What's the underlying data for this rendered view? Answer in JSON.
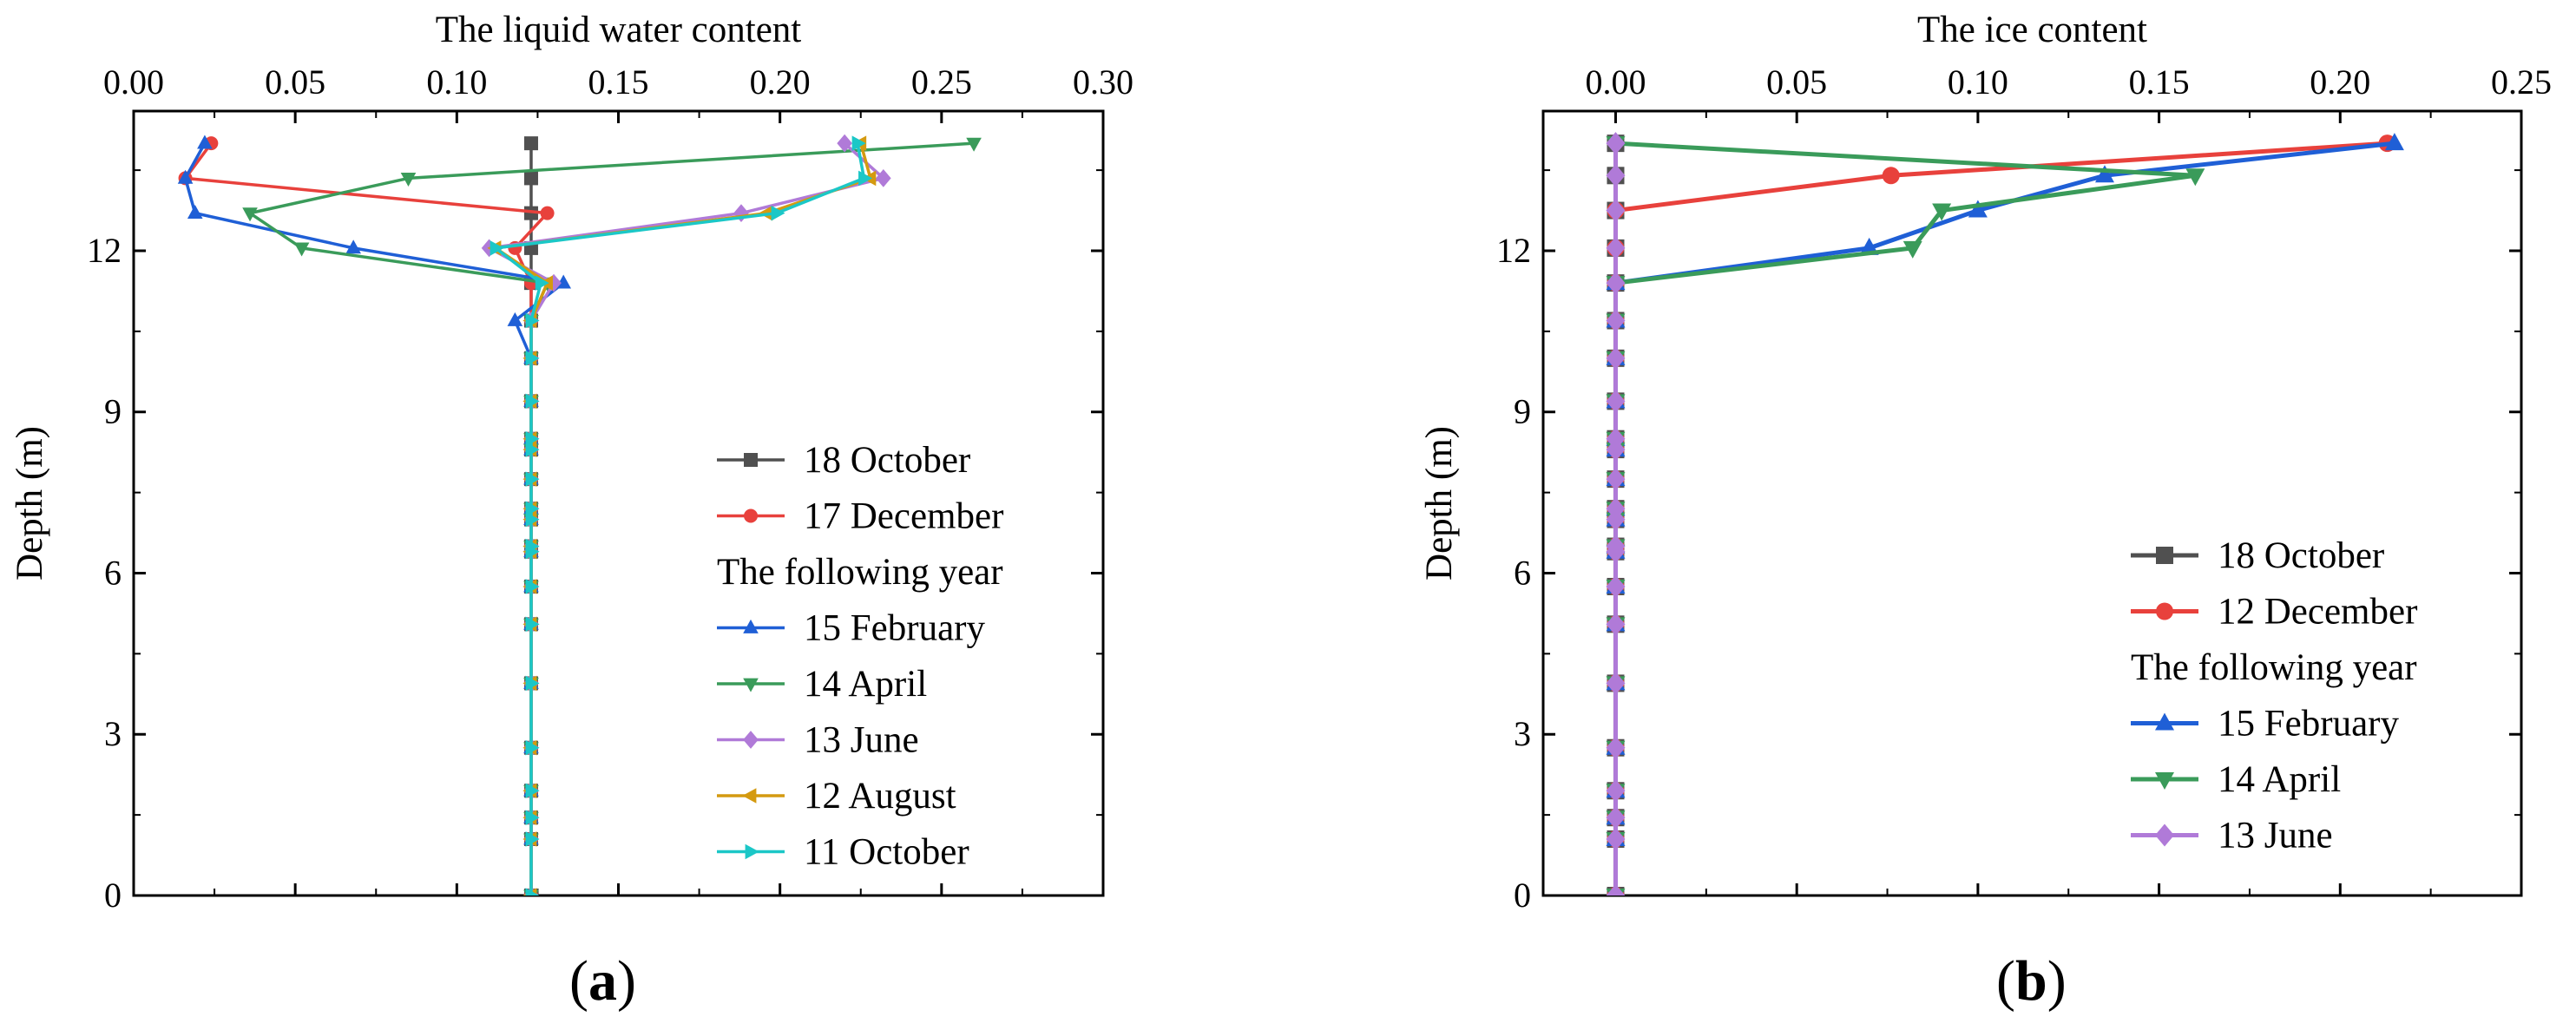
{
  "colors": {
    "18 October": "#505050",
    "17 December": "#e8413c",
    "12 December": "#e8413c",
    "15 February": "#1f5fd6",
    "14 April": "#3a9b5a",
    "13 June": "#b07ad8",
    "12 August": "#d49a10",
    "11 October": "#1bc7c7"
  },
  "chart_data": [
    {
      "type": "line",
      "panel_label": "a",
      "title": "",
      "xlabel": "The liquid water content",
      "ylabel": "Depth (m)",
      "xlim": [
        0.0,
        0.3
      ],
      "ylim": [
        0,
        14.6
      ],
      "xticks": [
        "0.00",
        "0.05",
        "0.10",
        "0.15",
        "0.20",
        "0.25",
        "0.30"
      ],
      "yticks": [
        "0",
        "3",
        "6",
        "9",
        "12"
      ],
      "legend_subheading": "The following year",
      "legend_position": "lower-right",
      "depths": [
        14.0,
        13.35,
        12.7,
        12.05,
        11.4,
        10.7,
        10.0,
        9.2,
        8.5,
        8.3,
        7.75,
        7.2,
        7.0,
        6.5,
        6.4,
        5.75,
        5.05,
        3.95,
        2.75,
        1.95,
        1.45,
        1.05,
        0.0
      ],
      "series": [
        {
          "name": "18 October",
          "marker": "square",
          "values": [
            0.123,
            0.123,
            0.123,
            0.123,
            0.123,
            0.123,
            0.123,
            0.123,
            0.123,
            0.123,
            0.123,
            0.123,
            0.123,
            0.123,
            0.123,
            0.123,
            0.123,
            0.123,
            0.123,
            0.123,
            0.123,
            0.123,
            0.123
          ]
        },
        {
          "name": "17 December",
          "marker": "circle",
          "values": [
            0.024,
            0.016,
            0.128,
            0.118,
            0.123,
            0.123,
            0.123,
            0.123,
            0.123,
            0.123,
            0.123,
            0.123,
            0.123,
            0.123,
            0.123,
            0.123,
            0.123,
            0.123,
            0.123,
            0.123,
            0.123,
            0.123,
            0.123
          ]
        },
        {
          "name": "15 February",
          "marker": "triangle-up",
          "values": [
            0.022,
            0.016,
            0.019,
            0.068,
            0.133,
            0.118,
            0.123,
            0.123,
            0.123,
            0.123,
            0.123,
            0.123,
            0.123,
            0.123,
            0.123,
            0.123,
            0.123,
            0.123,
            0.123,
            0.123,
            0.123,
            0.123,
            0.123
          ]
        },
        {
          "name": "14 April",
          "marker": "triangle-down",
          "values": [
            0.26,
            0.085,
            0.036,
            0.052,
            0.128,
            0.123,
            0.123,
            0.123,
            0.123,
            0.123,
            0.123,
            0.123,
            0.123,
            0.123,
            0.123,
            0.123,
            0.123,
            0.123,
            0.123,
            0.123,
            0.123,
            0.123,
            0.123
          ]
        },
        {
          "name": "13 June",
          "marker": "diamond",
          "values": [
            0.22,
            0.232,
            0.188,
            0.11,
            0.13,
            0.123,
            0.123,
            0.123,
            0.123,
            0.123,
            0.123,
            0.123,
            0.123,
            0.123,
            0.123,
            0.123,
            0.123,
            0.123,
            0.123,
            0.123,
            0.123,
            0.123,
            0.123
          ]
        },
        {
          "name": "12 August",
          "marker": "triangle-left",
          "values": [
            0.225,
            0.228,
            0.196,
            0.112,
            0.128,
            0.123,
            0.123,
            0.123,
            0.123,
            0.123,
            0.123,
            0.123,
            0.123,
            0.123,
            0.123,
            0.123,
            0.123,
            0.123,
            0.123,
            0.123,
            0.123,
            0.123,
            0.123
          ]
        },
        {
          "name": "11 October",
          "marker": "triangle-right",
          "values": [
            0.224,
            0.226,
            0.199,
            0.112,
            0.126,
            0.123,
            0.123,
            0.123,
            0.123,
            0.123,
            0.123,
            0.123,
            0.123,
            0.123,
            0.123,
            0.123,
            0.123,
            0.123,
            0.123,
            0.123,
            0.123,
            0.123,
            0.123
          ]
        }
      ]
    },
    {
      "type": "line",
      "panel_label": "b",
      "title": "",
      "xlabel": "The ice content",
      "ylabel": "Depth (m)",
      "xlim": [
        -0.02,
        0.25
      ],
      "ylim": [
        0,
        14.6
      ],
      "xticks": [
        "0.00",
        "0.05",
        "0.10",
        "0.15",
        "0.20",
        "0.25"
      ],
      "yticks": [
        "0",
        "3",
        "6",
        "9",
        "12"
      ],
      "legend_subheading": "The following year",
      "legend_position": "lower-right",
      "depths": [
        14.0,
        13.4,
        12.75,
        12.05,
        11.4,
        10.7,
        10.0,
        9.2,
        8.5,
        8.3,
        7.75,
        7.2,
        7.0,
        6.5,
        6.4,
        5.75,
        5.05,
        3.95,
        2.75,
        1.95,
        1.45,
        1.05,
        0.0
      ],
      "series": [
        {
          "name": "18 October",
          "marker": "square",
          "values": [
            0,
            0,
            0,
            0,
            0,
            0,
            0,
            0,
            0,
            0,
            0,
            0,
            0,
            0,
            0,
            0,
            0,
            0,
            0,
            0,
            0,
            0,
            0
          ]
        },
        {
          "name": "12 December",
          "marker": "circle",
          "values": [
            0.213,
            0.076,
            0.0,
            0.0,
            0.0,
            0,
            0,
            0,
            0,
            0,
            0,
            0,
            0,
            0,
            0,
            0,
            0,
            0,
            0,
            0,
            0,
            0,
            0
          ]
        },
        {
          "name": "15 February",
          "marker": "triangle-up",
          "values": [
            0.215,
            0.135,
            0.1,
            0.07,
            0.0,
            0,
            0,
            0,
            0,
            0,
            0,
            0,
            0,
            0,
            0,
            0,
            0,
            0,
            0,
            0,
            0,
            0,
            0
          ]
        },
        {
          "name": "14 April",
          "marker": "triangle-down",
          "values": [
            0.0,
            0.16,
            0.09,
            0.082,
            0.0,
            0,
            0,
            0,
            0,
            0,
            0,
            0,
            0,
            0,
            0,
            0,
            0,
            0,
            0,
            0,
            0,
            0,
            0
          ]
        },
        {
          "name": "13 June",
          "marker": "diamond",
          "values": [
            0,
            0,
            0,
            0,
            0,
            0,
            0,
            0,
            0,
            0,
            0,
            0,
            0,
            0,
            0,
            0,
            0,
            0,
            0,
            0,
            0,
            0,
            0
          ]
        }
      ]
    }
  ]
}
